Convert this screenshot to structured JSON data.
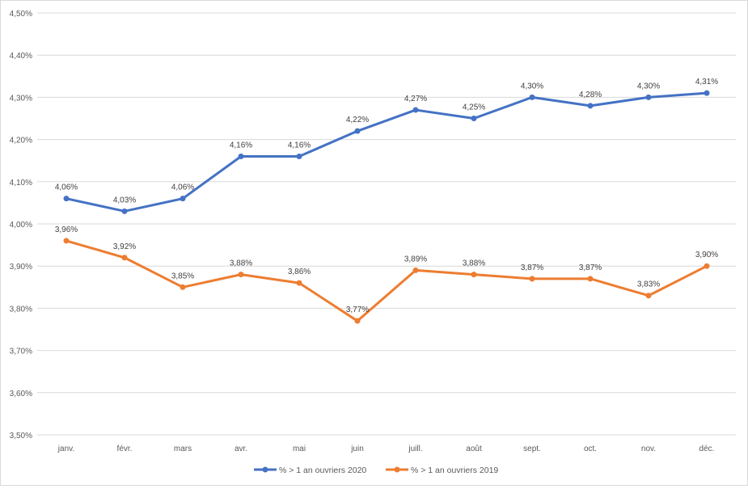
{
  "chart_data": {
    "type": "line",
    "title": "",
    "xlabel": "",
    "ylabel": "",
    "categories": [
      "janv.",
      "févr.",
      "mars",
      "avr.",
      "mai",
      "juin",
      "juill.",
      "août",
      "sept.",
      "oct.",
      "nov.",
      "déc."
    ],
    "ylim": [
      3.5,
      4.5
    ],
    "yticks": [
      3.5,
      3.6,
      3.7,
      3.8,
      3.9,
      4.0,
      4.1,
      4.2,
      4.3,
      4.4,
      4.5
    ],
    "ytick_labels": [
      "3,50%",
      "3,60%",
      "3,70%",
      "3,80%",
      "3,90%",
      "4,00%",
      "4,10%",
      "4,20%",
      "4,30%",
      "4,40%",
      "4,50%"
    ],
    "grid": true,
    "legend_position": "bottom",
    "series": [
      {
        "name": "% > 1 an ouvriers 2020",
        "color": "#4472c4",
        "values": [
          4.06,
          4.03,
          4.06,
          4.16,
          4.16,
          4.22,
          4.27,
          4.25,
          4.3,
          4.28,
          4.3,
          4.31
        ],
        "labels": [
          "4,06%",
          "4,03%",
          "4,06%",
          "4,16%",
          "4,16%",
          "4,22%",
          "4,27%",
          "4,25%",
          "4,30%",
          "4,28%",
          "4,30%",
          "4,31%"
        ]
      },
      {
        "name": "% > 1 an ouvriers 2019",
        "color": "#ed7d31",
        "values": [
          3.96,
          3.92,
          3.85,
          3.88,
          3.86,
          3.77,
          3.89,
          3.88,
          3.87,
          3.87,
          3.83,
          3.9
        ],
        "labels": [
          "3,96%",
          "3,92%",
          "3,85%",
          "3,88%",
          "3,86%",
          "3,77%",
          "3,89%",
          "3,88%",
          "3,87%",
          "3,87%",
          "3,83%",
          "3,90%"
        ]
      }
    ]
  }
}
